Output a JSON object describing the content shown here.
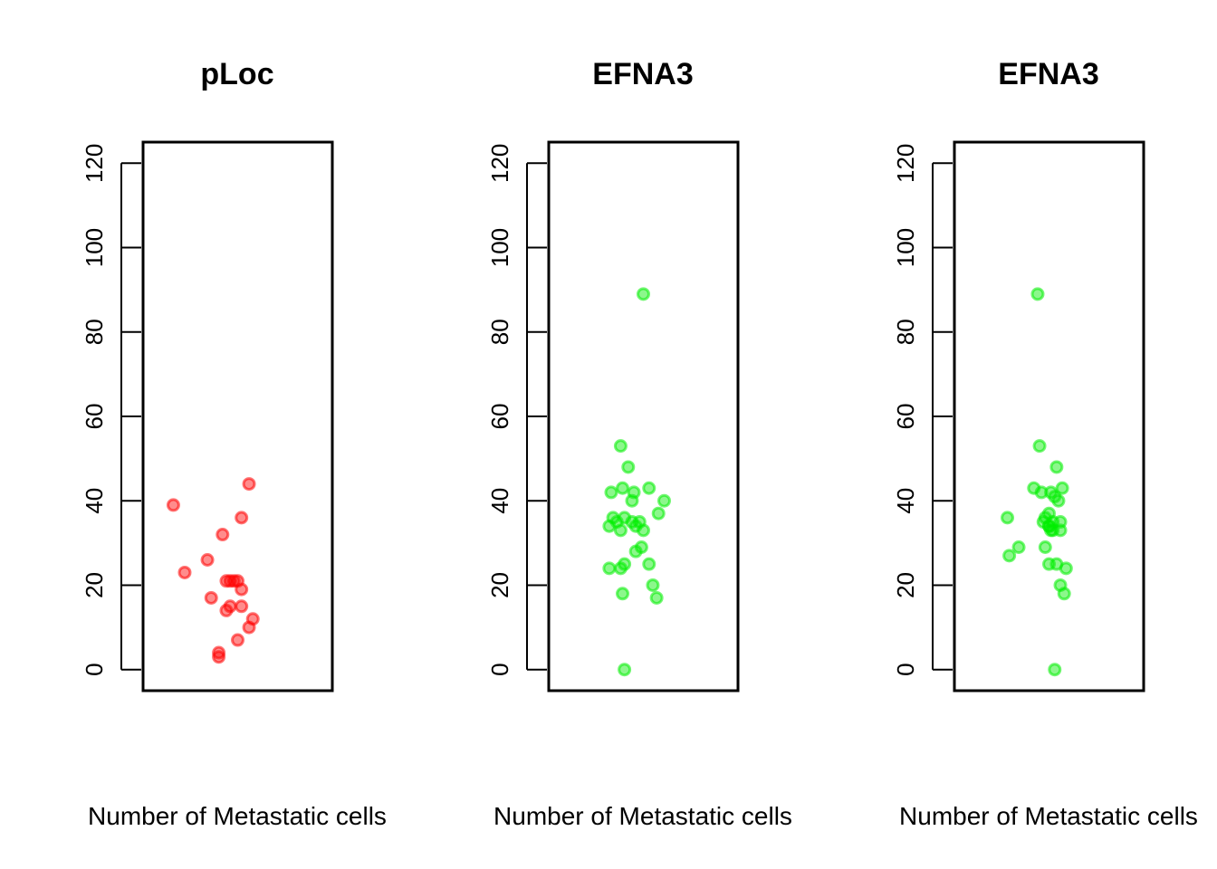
{
  "chart_data": [
    {
      "type": "scatter",
      "title": "pLoc",
      "xlabel": "Number of Metastatic cells",
      "ylabel": "",
      "ylim": [
        -5,
        125
      ],
      "yticks": [
        0,
        20,
        40,
        60,
        80,
        100,
        120
      ],
      "point_color": "#ff0000",
      "grid": false,
      "series": [
        {
          "x": [
            0.16,
            0.56,
            0.52,
            0.42,
            0.34,
            0.22,
            0.46,
            0.5,
            0.48,
            0.52,
            0.36,
            0.46,
            0.52,
            0.44,
            0.58,
            0.56,
            0.5,
            0.4,
            0.4,
            0.44
          ],
          "values": [
            39,
            44,
            36,
            32,
            26,
            23,
            21,
            21,
            21,
            19,
            17,
            15,
            15,
            14,
            12,
            10,
            7,
            4,
            3,
            21
          ]
        }
      ]
    },
    {
      "type": "scatter",
      "title": "EFNA3",
      "xlabel": "Number of Metastatic cells",
      "ylabel": "",
      "ylim": [
        -5,
        125
      ],
      "yticks": [
        0,
        20,
        40,
        60,
        80,
        100,
        120
      ],
      "point_color": "#00ee00",
      "grid": false,
      "series": [
        {
          "x": [
            0.5,
            0.38,
            0.42,
            0.39,
            0.33,
            0.53,
            0.45,
            0.44,
            0.61,
            0.58,
            0.34,
            0.4,
            0.36,
            0.32,
            0.48,
            0.44,
            0.38,
            0.46,
            0.5,
            0.49,
            0.46,
            0.53,
            0.4,
            0.38,
            0.32,
            0.55,
            0.39,
            0.57,
            0.4
          ],
          "values": [
            89,
            53,
            48,
            43,
            42,
            43,
            42,
            40,
            40,
            37,
            36,
            36,
            35,
            34,
            35,
            35,
            33,
            34,
            33,
            29,
            28,
            25,
            25,
            24,
            24,
            20,
            18,
            17,
            0
          ]
        }
      ]
    },
    {
      "type": "scatter",
      "title": "EFNA3",
      "xlabel": "Number of Metastatic cells",
      "ylabel": "",
      "ylim": [
        -5,
        125
      ],
      "yticks": [
        0,
        20,
        40,
        60,
        80,
        100,
        120
      ],
      "point_color": "#00ee00",
      "grid": false,
      "series": [
        {
          "x": [
            0.44,
            0.45,
            0.54,
            0.42,
            0.51,
            0.46,
            0.57,
            0.55,
            0.53,
            0.5,
            0.28,
            0.48,
            0.52,
            0.5,
            0.56,
            0.52,
            0.47,
            0.5,
            0.51,
            0.56,
            0.48,
            0.34,
            0.29,
            0.5,
            0.54,
            0.59,
            0.56,
            0.58,
            0.53
          ],
          "values": [
            89,
            53,
            48,
            43,
            42,
            42,
            43,
            40,
            41,
            37,
            36,
            36,
            35,
            34,
            33,
            33,
            35,
            34,
            33,
            35,
            29,
            29,
            27,
            25,
            25,
            24,
            20,
            18,
            0
          ]
        }
      ]
    }
  ]
}
